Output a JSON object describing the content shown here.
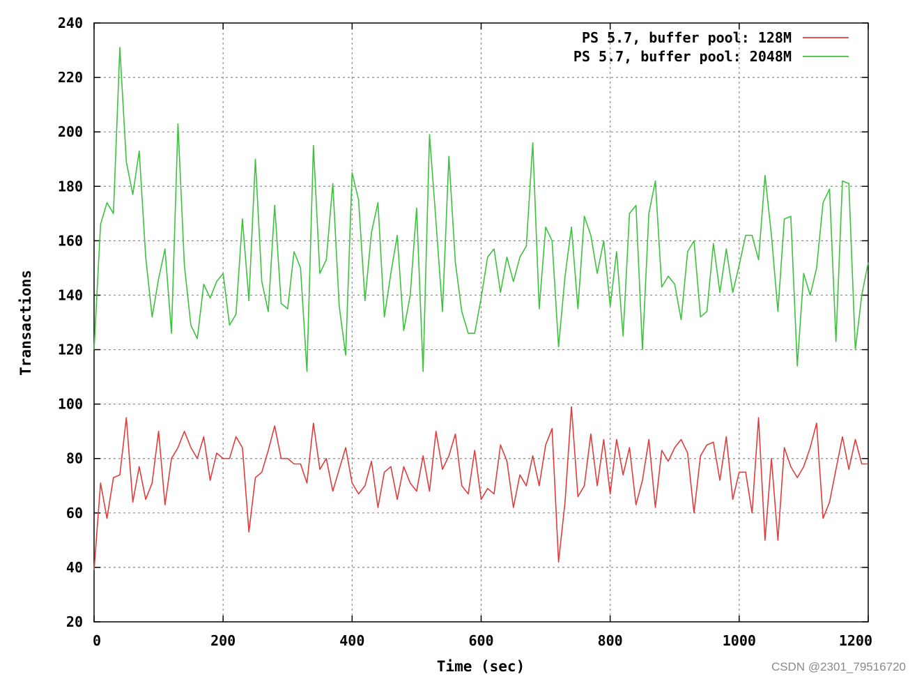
{
  "watermark": "CSDN @2301_79516720",
  "chart_data": {
    "type": "line",
    "xlabel": "Time (sec)",
    "ylabel": "Transactions",
    "xlim": [
      0,
      1200
    ],
    "ylim": [
      20,
      240
    ],
    "xticks": [
      0,
      200,
      400,
      600,
      800,
      1000,
      1200
    ],
    "yticks": [
      20,
      40,
      60,
      80,
      100,
      120,
      140,
      160,
      180,
      200,
      220,
      240
    ],
    "grid": true,
    "legend_position": "top-right",
    "x": [
      0,
      10,
      20,
      30,
      40,
      50,
      60,
      70,
      80,
      90,
      100,
      110,
      120,
      130,
      140,
      150,
      160,
      170,
      180,
      190,
      200,
      210,
      220,
      230,
      240,
      250,
      260,
      270,
      280,
      290,
      300,
      310,
      320,
      330,
      340,
      350,
      360,
      370,
      380,
      390,
      400,
      410,
      420,
      430,
      440,
      450,
      460,
      470,
      480,
      490,
      500,
      510,
      520,
      530,
      540,
      550,
      560,
      570,
      580,
      590,
      600,
      610,
      620,
      630,
      640,
      650,
      660,
      670,
      680,
      690,
      700,
      710,
      720,
      730,
      740,
      750,
      760,
      770,
      780,
      790,
      800,
      810,
      820,
      830,
      840,
      850,
      860,
      870,
      880,
      890,
      900,
      910,
      920,
      930,
      940,
      950,
      960,
      970,
      980,
      990,
      1000,
      1010,
      1020,
      1030,
      1040,
      1050,
      1060,
      1070,
      1080,
      1090,
      1100,
      1110,
      1120,
      1130,
      1140,
      1150,
      1160,
      1170,
      1180,
      1190,
      1200
    ],
    "series": [
      {
        "name": "PS 5.7, buffer pool: 128M",
        "color": "#e03c3c",
        "values": [
          39,
          71,
          58,
          73,
          74,
          95,
          64,
          77,
          65,
          71,
          90,
          63,
          80,
          84,
          90,
          84,
          80,
          88,
          72,
          82,
          80,
          80,
          88,
          84,
          53,
          73,
          75,
          83,
          92,
          80,
          80,
          78,
          78,
          71,
          93,
          76,
          80,
          68,
          76,
          84,
          71,
          67,
          70,
          79,
          62,
          75,
          77,
          65,
          77,
          71,
          68,
          81,
          68,
          90,
          76,
          81,
          89,
          70,
          67,
          83,
          65,
          69,
          67,
          85,
          79,
          62,
          74,
          70,
          81,
          70,
          85,
          91,
          42,
          64,
          99,
          66,
          70,
          89,
          70,
          87,
          67,
          87,
          74,
          84,
          63,
          72,
          87,
          62,
          83,
          79,
          84,
          87,
          82,
          60,
          81,
          85,
          86,
          72,
          88,
          65,
          75,
          75,
          60,
          95,
          50,
          80,
          50,
          84,
          77,
          73,
          77,
          84,
          93,
          58,
          64,
          76,
          88,
          76,
          87,
          78,
          78
        ]
      },
      {
        "name": "PS 5.7, buffer pool: 2048M",
        "color": "#3cc23c",
        "values": [
          120,
          166,
          174,
          170,
          231,
          189,
          177,
          193,
          154,
          132,
          146,
          157,
          126,
          203,
          151,
          129,
          124,
          144,
          139,
          145,
          148,
          129,
          133,
          168,
          138,
          190,
          145,
          134,
          173,
          137,
          135,
          156,
          150,
          112,
          195,
          148,
          153,
          181,
          136,
          118,
          185,
          175,
          138,
          163,
          174,
          132,
          148,
          162,
          127,
          140,
          172,
          112,
          199,
          167,
          134,
          191,
          152,
          134,
          126,
          126,
          139,
          154,
          157,
          141,
          154,
          145,
          154,
          158,
          196,
          135,
          165,
          160,
          121,
          147,
          165,
          135,
          169,
          162,
          148,
          160,
          136,
          156,
          125,
          170,
          173,
          120,
          170,
          182,
          143,
          147,
          144,
          131,
          156,
          160,
          132,
          134,
          159,
          141,
          157,
          141,
          151,
          162,
          162,
          153,
          184,
          162,
          134,
          168,
          169,
          114,
          148,
          140,
          150,
          174,
          179,
          123,
          182,
          181,
          120,
          140,
          152
        ]
      }
    ]
  }
}
